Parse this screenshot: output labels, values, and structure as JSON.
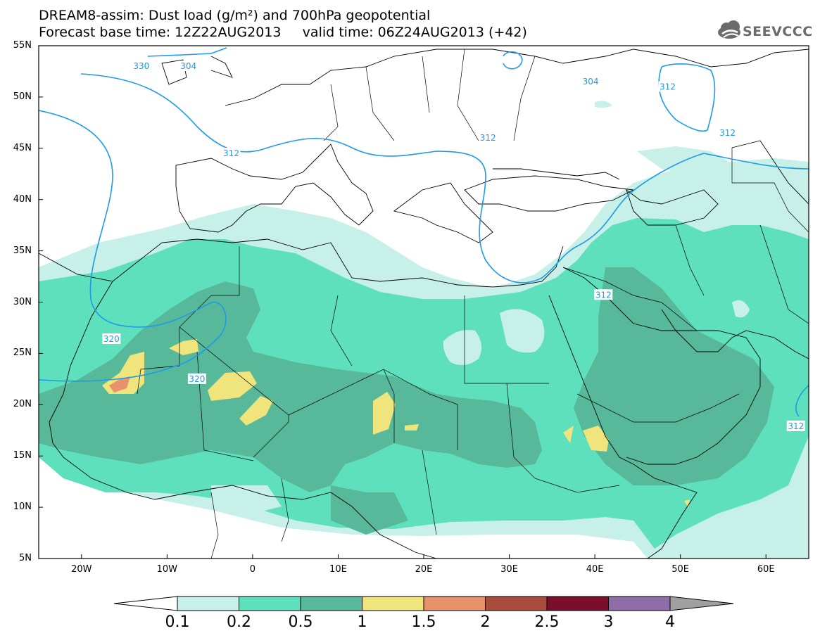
{
  "title": {
    "line1": "DREAM8-assim: Dust load (g/m²) and 700hPa geopotential",
    "line2": "Forecast base time: 12Z22AUG2013     valid time: 06Z24AUG2013 (+42)"
  },
  "logo": {
    "text": "SEEVCCC",
    "icon": "cloud-icon"
  },
  "map": {
    "projection": "lat-lon",
    "lon_range": [
      -25,
      65
    ],
    "lat_range": [
      5,
      55
    ],
    "lat_ticks": [
      "5N",
      "10N",
      "15N",
      "20N",
      "25N",
      "30N",
      "35N",
      "40N",
      "45N",
      "50N",
      "55N"
    ],
    "lon_ticks": [
      "20W",
      "10W",
      "0",
      "10E",
      "20E",
      "30E",
      "40E",
      "50E",
      "60E"
    ],
    "variable": "Dust load",
    "units": "g/m²",
    "contour_variable": "700hPa geopotential",
    "contour_labels": [
      {
        "text": "330",
        "lon": -13,
        "lat": 53.0
      },
      {
        "text": "304",
        "lon": -7.5,
        "lat": 53.0
      },
      {
        "text": "312",
        "lon": -2.5,
        "lat": 44.5
      },
      {
        "text": "304",
        "lon": 39.5,
        "lat": 51.5
      },
      {
        "text": "312",
        "lon": 48.5,
        "lat": 51.0
      },
      {
        "text": "312",
        "lon": 27.5,
        "lat": 46.0
      },
      {
        "text": "312",
        "lon": 55.5,
        "lat": 46.5
      },
      {
        "text": "312",
        "lon": 41.0,
        "lat": 30.7
      },
      {
        "text": "320",
        "lon": -16.5,
        "lat": 26.4
      },
      {
        "text": "320",
        "lon": -6.5,
        "lat": 22.5
      },
      {
        "text": "312",
        "lon": 63.5,
        "lat": 17.9
      }
    ]
  },
  "colorbar": {
    "levels": [
      "0.1",
      "0.2",
      "0.5",
      "1",
      "1.5",
      "2",
      "2.5",
      "3",
      "4"
    ],
    "colors": [
      "#ffffff",
      "#c6f0e8",
      "#5ee0bc",
      "#58b89a",
      "#f0e47c",
      "#e8916a",
      "#a84a3c",
      "#7a0e2c",
      "#8e6da8",
      "#a0a0a0"
    ]
  },
  "colors": {
    "contour": "#1e9be8",
    "land_border": "#000000",
    "dust_0_1": "#c6f0e8",
    "dust_0_2": "#5ee0bc",
    "dust_0_5": "#58b89a",
    "dust_1": "#f0e47c",
    "dust_1_5": "#e8916a"
  }
}
